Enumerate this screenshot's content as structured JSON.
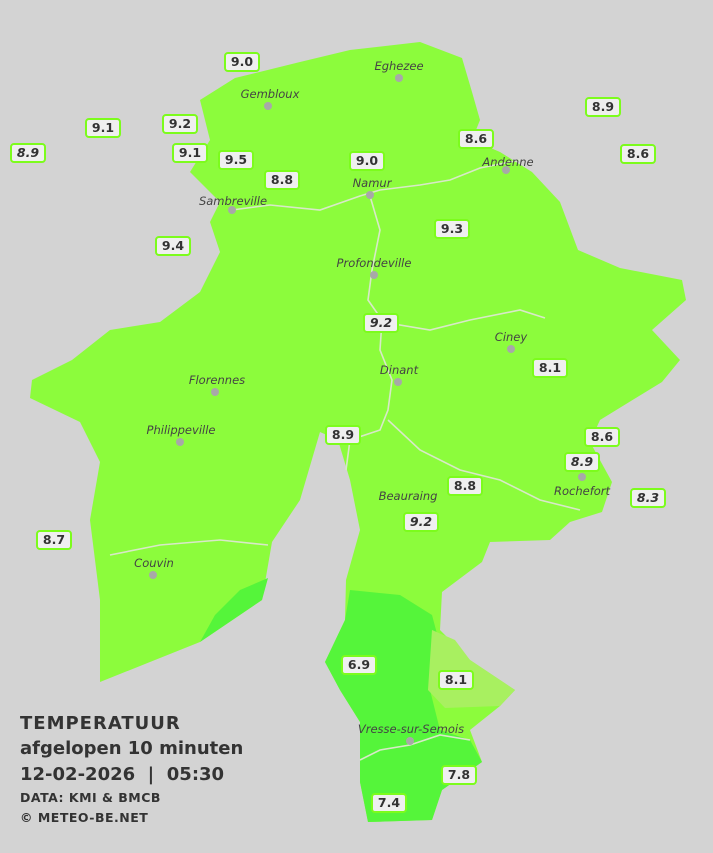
{
  "colors": {
    "background": "#d3d3d3",
    "region": "#8cfc3c",
    "region_dark": "#55f53a",
    "region_light": "#a8f060",
    "label_border": "#7cfc1c"
  },
  "legend": {
    "title": "TEMPERATUUR",
    "subtitle": "afgelopen 10 minuten",
    "datetime": "12-02-2026  |  05:30",
    "source": "DATA: KMI & BMCB",
    "copyright": "© METEO-BE.NET"
  },
  "towns": [
    "Eghezee",
    "Gembloux",
    "Andenne",
    "Namur",
    "Sambreville",
    "Profondeville",
    "Ciney",
    "Dinant",
    "Florennes",
    "Philippeville",
    "Rochefort",
    "Beauraing",
    "Couvin",
    "Vresse-sur-Semois"
  ],
  "stations": [
    {
      "value": "9.0",
      "italic": false
    },
    {
      "value": "9.1",
      "italic": false
    },
    {
      "value": "9.2",
      "italic": false
    },
    {
      "value": "8.9",
      "italic": true
    },
    {
      "value": "9.1",
      "italic": false
    },
    {
      "value": "9.5",
      "italic": false
    },
    {
      "value": "8.8",
      "italic": false
    },
    {
      "value": "9.0",
      "italic": false
    },
    {
      "value": "8.6",
      "italic": false
    },
    {
      "value": "8.9",
      "italic": false
    },
    {
      "value": "8.6",
      "italic": false
    },
    {
      "value": "9.4",
      "italic": false
    },
    {
      "value": "9.3",
      "italic": false
    },
    {
      "value": "9.2",
      "italic": true
    },
    {
      "value": "8.1",
      "italic": false
    },
    {
      "value": "8.9",
      "italic": false
    },
    {
      "value": "8.6",
      "italic": false
    },
    {
      "value": "8.9",
      "italic": true
    },
    {
      "value": "8.8",
      "italic": false
    },
    {
      "value": "8.3",
      "italic": true
    },
    {
      "value": "9.2",
      "italic": true
    },
    {
      "value": "8.7",
      "italic": false
    },
    {
      "value": "6.9",
      "italic": false
    },
    {
      "value": "8.1",
      "italic": false
    },
    {
      "value": "7.8",
      "italic": false
    },
    {
      "value": "7.4",
      "italic": false
    }
  ]
}
